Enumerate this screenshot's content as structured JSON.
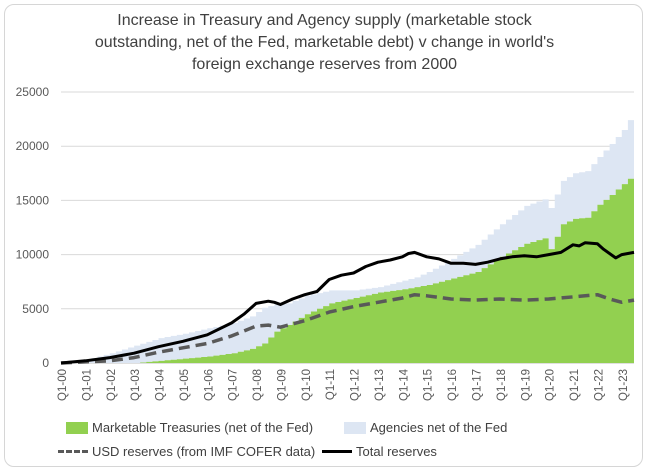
{
  "title_lines": [
    "Increase in Treasury and Agency supply (marketable stock",
    "outstanding, net of the Fed, marketable debt) v change in world's",
    "foreign exchange reserves from 2000"
  ],
  "colors": {
    "treasuries": "#92d050",
    "agencies": "#dde6f3",
    "usd": "#595959",
    "total": "#000000",
    "grid": "#d9d9d9"
  },
  "chart_data": {
    "type": "area",
    "title": "Increase in Treasury and Agency supply (marketable stock outstanding, net of the Fed, marketable debt) v change in world's foreign exchange reserves from 2000",
    "ylim": [
      0,
      25000
    ],
    "yticks": [
      0,
      5000,
      10000,
      15000,
      20000,
      25000
    ],
    "ytick_labels": [
      "0",
      "5000",
      "10000",
      "15000",
      "20000",
      "25000"
    ],
    "x_range": [
      2000,
      2023.5
    ],
    "x_labels": [
      "Q1-00",
      "Q1-01",
      "Q1-02",
      "Q1-03",
      "Q1-04",
      "Q1-05",
      "Q1-06",
      "Q1-07",
      "Q1-08",
      "Q1-09",
      "Q1-10",
      "Q1-11",
      "Q1-12",
      "Q1-13",
      "Q1-14",
      "Q1-15",
      "Q1-16",
      "Q1-17",
      "Q1-18",
      "Q1-19",
      "Q1-20",
      "Q1-21",
      "Q1-22",
      "Q1-23"
    ],
    "legend": [
      "Marketable Treasuries (net of the Fed)",
      "Agencies net of the Fed",
      "USD reserves (from IMF COFER data)",
      "Total reserves"
    ],
    "series": [
      {
        "name": "Marketable Treasuries (net of the Fed)",
        "style": "stacked-area",
        "x": [
          2000,
          2001,
          2002,
          2003,
          2004,
          2005,
          2006,
          2007,
          2007.75,
          2008.25,
          2008.75,
          2009.25,
          2010,
          2011,
          2012,
          2013,
          2014,
          2014.5,
          2015,
          2016,
          2017,
          2018,
          2019,
          2019.75,
          2020,
          2020.5,
          2021,
          2021.5,
          2022,
          2022.5,
          2023,
          2023.5
        ],
        "values": [
          0,
          0,
          0,
          0,
          200,
          400,
          600,
          900,
          1300,
          1800,
          2900,
          3500,
          4500,
          5500,
          6000,
          6500,
          6800,
          7000,
          7200,
          7800,
          8400,
          9800,
          11000,
          11500,
          10500,
          12800,
          13300,
          13400,
          14600,
          15500,
          16500,
          17500
        ]
      },
      {
        "name": "Agencies net of the Fed",
        "style": "stacked-area",
        "x": [
          2000,
          2001,
          2002,
          2003,
          2004,
          2005,
          2006,
          2007,
          2007.75,
          2008.25,
          2008.75,
          2009.25,
          2010,
          2011,
          2012,
          2013,
          2014,
          2014.5,
          2015,
          2016,
          2017,
          2018,
          2019,
          2019.75,
          2020,
          2020.5,
          2021,
          2021.5,
          2022,
          2022.5,
          2023,
          2023.5
        ],
        "values": [
          0,
          300,
          900,
          1600,
          2100,
          2300,
          2600,
          2800,
          3000,
          3300,
          2500,
          2000,
          1700,
          1200,
          700,
          500,
          800,
          900,
          1200,
          1800,
          2500,
          3000,
          3500,
          3600,
          3800,
          4000,
          4200,
          4300,
          4400,
          4700,
          5000,
          5800
        ]
      },
      {
        "name": "USD reserves (from IMF COFER data)",
        "style": "dashed-line",
        "x": [
          2000,
          2001,
          2002,
          2003,
          2004,
          2005,
          2006,
          2007,
          2008,
          2008.5,
          2009,
          2010,
          2011,
          2012,
          2013,
          2014,
          2014.5,
          2015,
          2016,
          2017,
          2018,
          2019,
          2020,
          2021,
          2021.5,
          2022,
          2022.5,
          2023,
          2023.5
        ],
        "values": [
          0,
          100,
          200,
          500,
          1000,
          1400,
          1800,
          2500,
          3400,
          3500,
          3300,
          3900,
          4700,
          5200,
          5600,
          6000,
          6300,
          6200,
          5900,
          5800,
          5900,
          5800,
          5900,
          6100,
          6200,
          6300,
          5900,
          5600,
          5800
        ]
      },
      {
        "name": "Total reserves",
        "style": "line",
        "x": [
          2000,
          2001,
          2002,
          2003,
          2004,
          2005,
          2006,
          2007,
          2007.5,
          2008,
          2008.5,
          2008.75,
          2009,
          2009.5,
          2010,
          2010.5,
          2011,
          2011.5,
          2012,
          2012.5,
          2013,
          2013.5,
          2014,
          2014.25,
          2014.5,
          2015,
          2015.5,
          2016,
          2016.5,
          2017,
          2017.5,
          2018,
          2018.5,
          2019,
          2019.5,
          2020,
          2020.5,
          2021,
          2021.25,
          2021.5,
          2022,
          2022.25,
          2022.75,
          2023,
          2023.5
        ],
        "values": [
          0,
          200,
          500,
          900,
          1500,
          2000,
          2600,
          3700,
          4500,
          5500,
          5700,
          5600,
          5400,
          5900,
          6300,
          6600,
          7700,
          8100,
          8300,
          8900,
          9300,
          9500,
          9800,
          10100,
          10200,
          9800,
          9600,
          9200,
          9200,
          9100,
          9300,
          9600,
          9800,
          9900,
          9800,
          10000,
          10200,
          10900,
          10800,
          11100,
          11000,
          10500,
          9700,
          10000,
          10200
        ]
      }
    ]
  }
}
